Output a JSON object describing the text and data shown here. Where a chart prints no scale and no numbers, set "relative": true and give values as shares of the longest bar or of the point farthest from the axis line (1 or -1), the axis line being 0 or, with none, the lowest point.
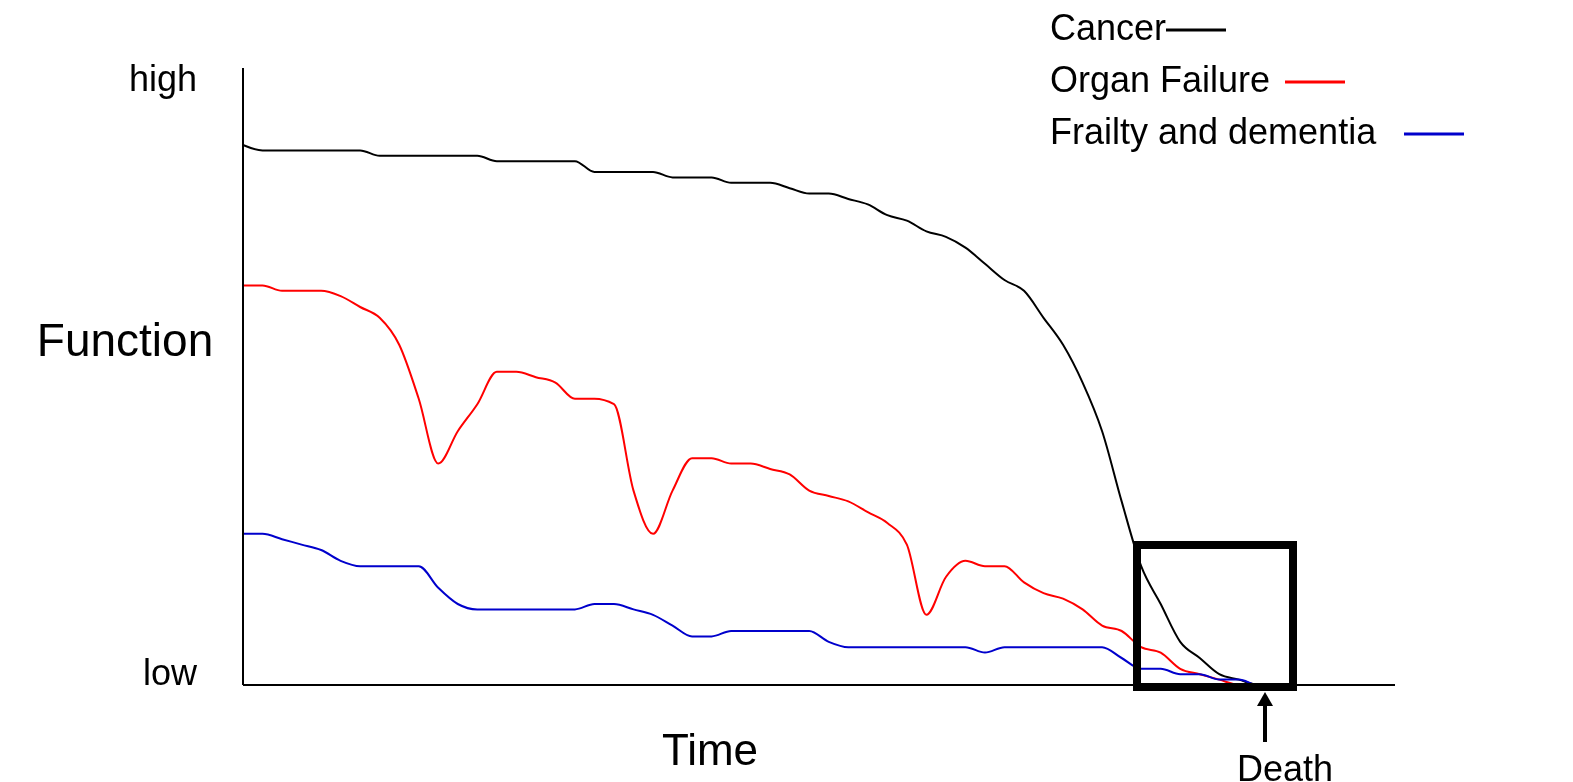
{
  "chart_data": {
    "type": "line",
    "xlabel": "Time",
    "ylabel": "Function",
    "relative": true,
    "legend": "top right",
    "annotations": [
      "high",
      "low",
      "Death"
    ],
    "categories": [
      null,
      null,
      null,
      null,
      null,
      null,
      null,
      null,
      null,
      null,
      null,
      null,
      null,
      null,
      null,
      null,
      null,
      null,
      null,
      null,
      null,
      null,
      null,
      null,
      null,
      null,
      null,
      null,
      null,
      null,
      null,
      null,
      null,
      null,
      null,
      null,
      null,
      null,
      null,
      null,
      null,
      null,
      null,
      null,
      null,
      null,
      null,
      null,
      null,
      null,
      null,
      null,
      null,
      null,
      null,
      null,
      null,
      null,
      null,
      null
    ],
    "series": [
      {
        "name": "Cancer",
        "color": "#000000",
        "values": [
          1,
          0.99,
          0.99,
          0.99,
          0.99,
          0.99,
          0.99,
          0.98,
          0.98,
          0.98,
          0.98,
          0.98,
          0.98,
          0.97,
          0.97,
          0.97,
          0.97,
          0.97,
          0.95,
          0.95,
          0.95,
          0.95,
          0.94,
          0.94,
          0.94,
          0.93,
          0.93,
          0.93,
          0.92,
          0.91,
          0.91,
          0.9,
          0.89,
          0.87,
          0.86,
          0.84,
          0.83,
          0.81,
          0.78,
          0.75,
          0.73,
          0.68,
          0.63,
          0.56,
          0.47,
          0.34,
          0.22,
          0.15,
          0.08,
          0.05,
          0.02,
          0.01,
          0,
          0,
          null,
          null,
          null,
          null,
          null,
          null
        ]
      },
      {
        "name": "Organ Failure",
        "color": "#ff0000",
        "values": [
          0.74,
          0.74,
          0.73,
          0.73,
          0.73,
          0.72,
          0.7,
          0.68,
          0.63,
          0.53,
          0.41,
          0.47,
          0.52,
          0.58,
          0.58,
          0.57,
          0.56,
          0.53,
          0.53,
          0.52,
          0.36,
          0.28,
          0.36,
          0.42,
          0.42,
          0.41,
          0.41,
          0.4,
          0.39,
          0.36,
          0.35,
          0.34,
          0.32,
          0.3,
          0.26,
          0.13,
          0.2,
          0.23,
          0.22,
          0.22,
          0.19,
          0.17,
          0.16,
          0.14,
          0.11,
          0.1,
          0.07,
          0.06,
          0.03,
          0.02,
          0.01,
          0,
          0,
          0,
          null,
          null,
          null,
          null,
          null,
          null
        ]
      },
      {
        "name": "Frailty and dementia",
        "color": "#0000cc",
        "values": [
          0.28,
          0.28,
          0.27,
          0.26,
          0.25,
          0.23,
          0.22,
          0.22,
          0.22,
          0.22,
          0.18,
          0.15,
          0.14,
          0.14,
          0.14,
          0.14,
          0.14,
          0.14,
          0.15,
          0.15,
          0.14,
          0.13,
          0.11,
          0.09,
          0.09,
          0.1,
          0.1,
          0.1,
          0.1,
          0.1,
          0.08,
          0.07,
          0.07,
          0.07,
          0.07,
          0.07,
          0.07,
          0.07,
          0.06,
          0.07,
          0.07,
          0.07,
          0.07,
          0.07,
          0.07,
          0.05,
          0.03,
          0.03,
          0.02,
          0.02,
          0.01,
          0.01,
          0,
          0,
          null,
          null,
          null,
          null,
          null,
          null
        ]
      }
    ]
  }
}
